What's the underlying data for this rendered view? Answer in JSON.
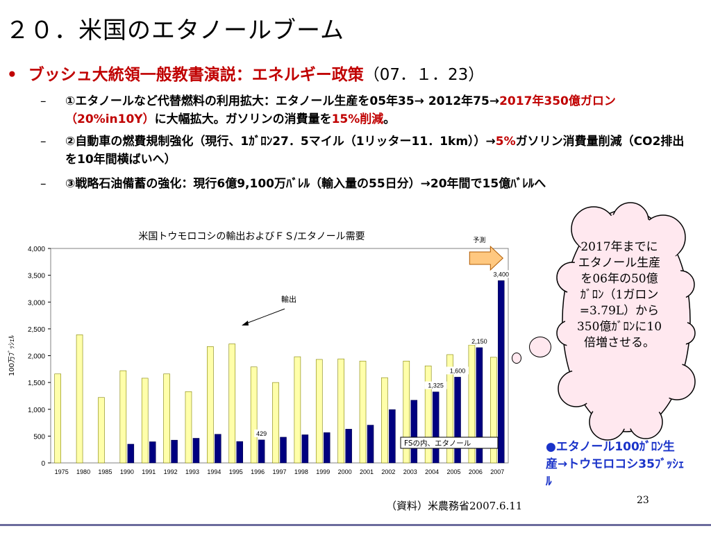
{
  "slide": {
    "title": "２０．米国のエタノールブーム",
    "headline_red": "ブッシュ大統領一般教書演説：エネルギー政策",
    "headline_date": "（07．１．23）",
    "points": [
      {
        "parts": [
          "①エタノールなど代替燃料の利用拡大：エタノール生産を05年35→ 2012年75→",
          "2017年350億ガロン（20%in10Y）",
          "に大幅拡大。ガソリンの消費量を",
          "15%削減",
          "。"
        ]
      },
      {
        "parts": [
          "②自動車の燃費規制強化（現行、1ｶﾞﾛﾝ27．5マイル（1リッター11．1km））→",
          "5%",
          "ガソリン消費量削減（CO2排出を10年間横ばいへ）"
        ]
      },
      {
        "parts": [
          "③戦略石油備蓄の強化：現行6億9,100万ﾊﾞﾚﾙ（輸入量の55日分）→20年間で15億ﾊﾞﾚﾙへ"
        ]
      }
    ],
    "page_number": "23",
    "source": "（資料）米農務省2007.6.11"
  },
  "cloud": {
    "text": "2017年までにエタノール生産を06年の50億ｶﾞﾛﾝ（1ガロン=3.79L）から350億ｶﾞﾛﾝに10倍増させる。"
  },
  "note": {
    "text": "●エタノール100ｶﾞﾛﾝ生産→トウモロコシ35ﾌﾞｯｼｪﾙ"
  },
  "colors": {
    "accent_red": "#c00000",
    "note_blue": "#1a33c9",
    "export_fill": "#ffffaa",
    "fs_fill": "#000080",
    "plot_bg": "#ffffff"
  },
  "chart_data": {
    "type": "bar",
    "title": "米国トウモロコシの輸出およびＦＳ/エタノール需要",
    "ylabel": "100万ﾌﾞｯｼｪﾙ",
    "xlabel": "",
    "ylim": [
      0,
      4000
    ],
    "yticks": [
      "0",
      "500",
      "1,000",
      "1,500",
      "2,000",
      "2,500",
      "3,000",
      "3,500",
      "4,000"
    ],
    "categories": [
      "1975",
      "1980",
      "1985",
      "1990",
      "1991",
      "1992",
      "1993",
      "1994",
      "1995",
      "1996",
      "1997",
      "1998",
      "1999",
      "2000",
      "2001",
      "2002",
      "2003",
      "2004",
      "2005",
      "2006",
      "2007"
    ],
    "series": [
      {
        "name": "輸出",
        "values": [
          1660,
          2390,
          1220,
          1720,
          1580,
          1660,
          1330,
          2170,
          2220,
          1790,
          1500,
          1980,
          1930,
          1940,
          1900,
          1590,
          1900,
          1810,
          2020,
          2200,
          1970
        ]
      },
      {
        "name": "FSの内、エタノール",
        "values": [
          null,
          null,
          null,
          350,
          395,
          425,
          460,
          535,
          400,
          429,
          480,
          525,
          565,
          630,
          705,
          995,
          1170,
          1325,
          1600,
          2150,
          3400
        ]
      }
    ],
    "data_labels": [
      {
        "series": 1,
        "category": "1996",
        "text": "429"
      },
      {
        "series": 1,
        "category": "2004",
        "text": "1,325"
      },
      {
        "series": 1,
        "category": "2005",
        "text": "1,600"
      },
      {
        "series": 1,
        "category": "2006",
        "text": "2,150"
      },
      {
        "series": 1,
        "category": "2007",
        "text": "3,400"
      }
    ],
    "annotations": {
      "forecast": "予測",
      "export_label": "輸出",
      "fs_label": "FSの内、エタノール"
    }
  }
}
